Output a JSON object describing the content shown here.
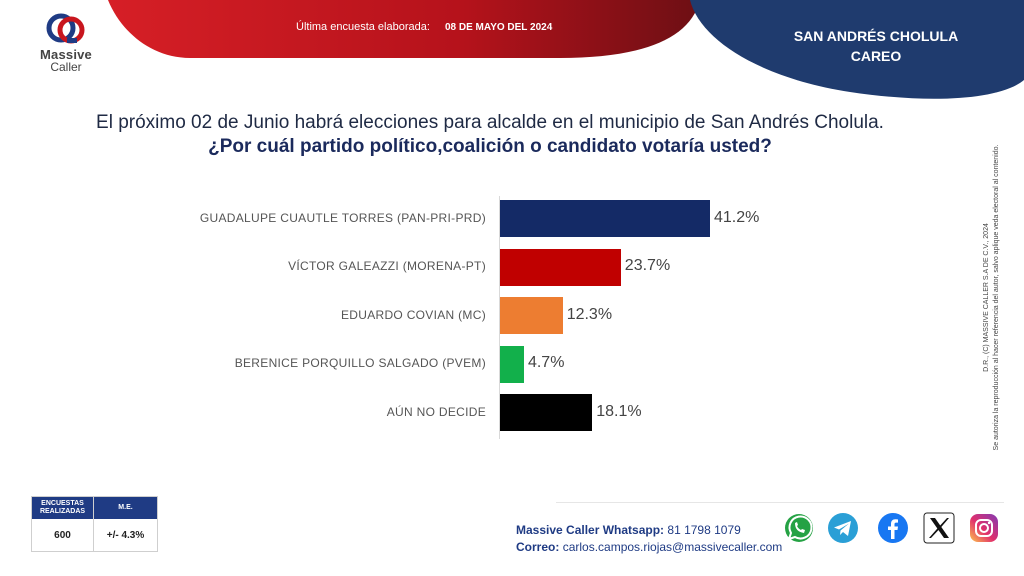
{
  "logo": {
    "line1": "Massive",
    "line2": "Caller"
  },
  "header": {
    "survey_label": "Última encuesta elaborada:",
    "survey_date": "08 DE MAYO DEL 2024"
  },
  "region": {
    "line1": "SAN ANDRÉS CHOLULA",
    "line2": "CAREO"
  },
  "question": {
    "line1": "El próximo 02 de Junio habrá elecciones para alcalde en el municipio de San Andrés Cholula.",
    "line2": "¿Por cuál partido político,coalición o candidato votaría usted?"
  },
  "chart_data": {
    "type": "bar",
    "orientation": "horizontal",
    "categories": [
      "GUADALUPE CUAUTLE TORRES (PAN-PRI-PRD)",
      "VÍCTOR GALEAZZI (MORENA-PT)",
      "EDUARDO COVIAN (MC)",
      "BERENICE PORQUILLO SALGADO (PVEM)",
      "AÚN NO DECIDE"
    ],
    "values": [
      41.2,
      23.7,
      12.3,
      4.7,
      18.1
    ],
    "value_labels": [
      "41.2%",
      "23.7%",
      "12.3%",
      "4.7%",
      "18.1%"
    ],
    "colors": [
      "#142a66",
      "#c00000",
      "#ed7d31",
      "#12b04b",
      "#000000"
    ],
    "xlim": [
      0,
      100
    ],
    "grid": false,
    "legend": "none"
  },
  "side_note": {
    "line1": "D.R., (C) MASSIVE CALLER S.A DE C.V., 2024",
    "line2": "Se autoriza la reproducción al hacer referencia del autor, salvo aplique veda electoral al contenido."
  },
  "stats": {
    "col1_header": "ENCUESTAS REALIZADAS",
    "col2_header": "M.E.",
    "col1_value": "600",
    "col2_value": "+/- 4.3%"
  },
  "contact": {
    "whatsapp_label": "Massive Caller Whatsapp:",
    "whatsapp_number": "81 1798 1079",
    "email_label": "Correo:",
    "email": "carlos.campos.riojas@massivecaller.com"
  },
  "social_icons": [
    "whatsapp-icon",
    "telegram-icon",
    "facebook-icon",
    "x-icon",
    "instagram-icon"
  ],
  "theme": {
    "navy": "#1f3b84",
    "red": "#b5121b"
  }
}
